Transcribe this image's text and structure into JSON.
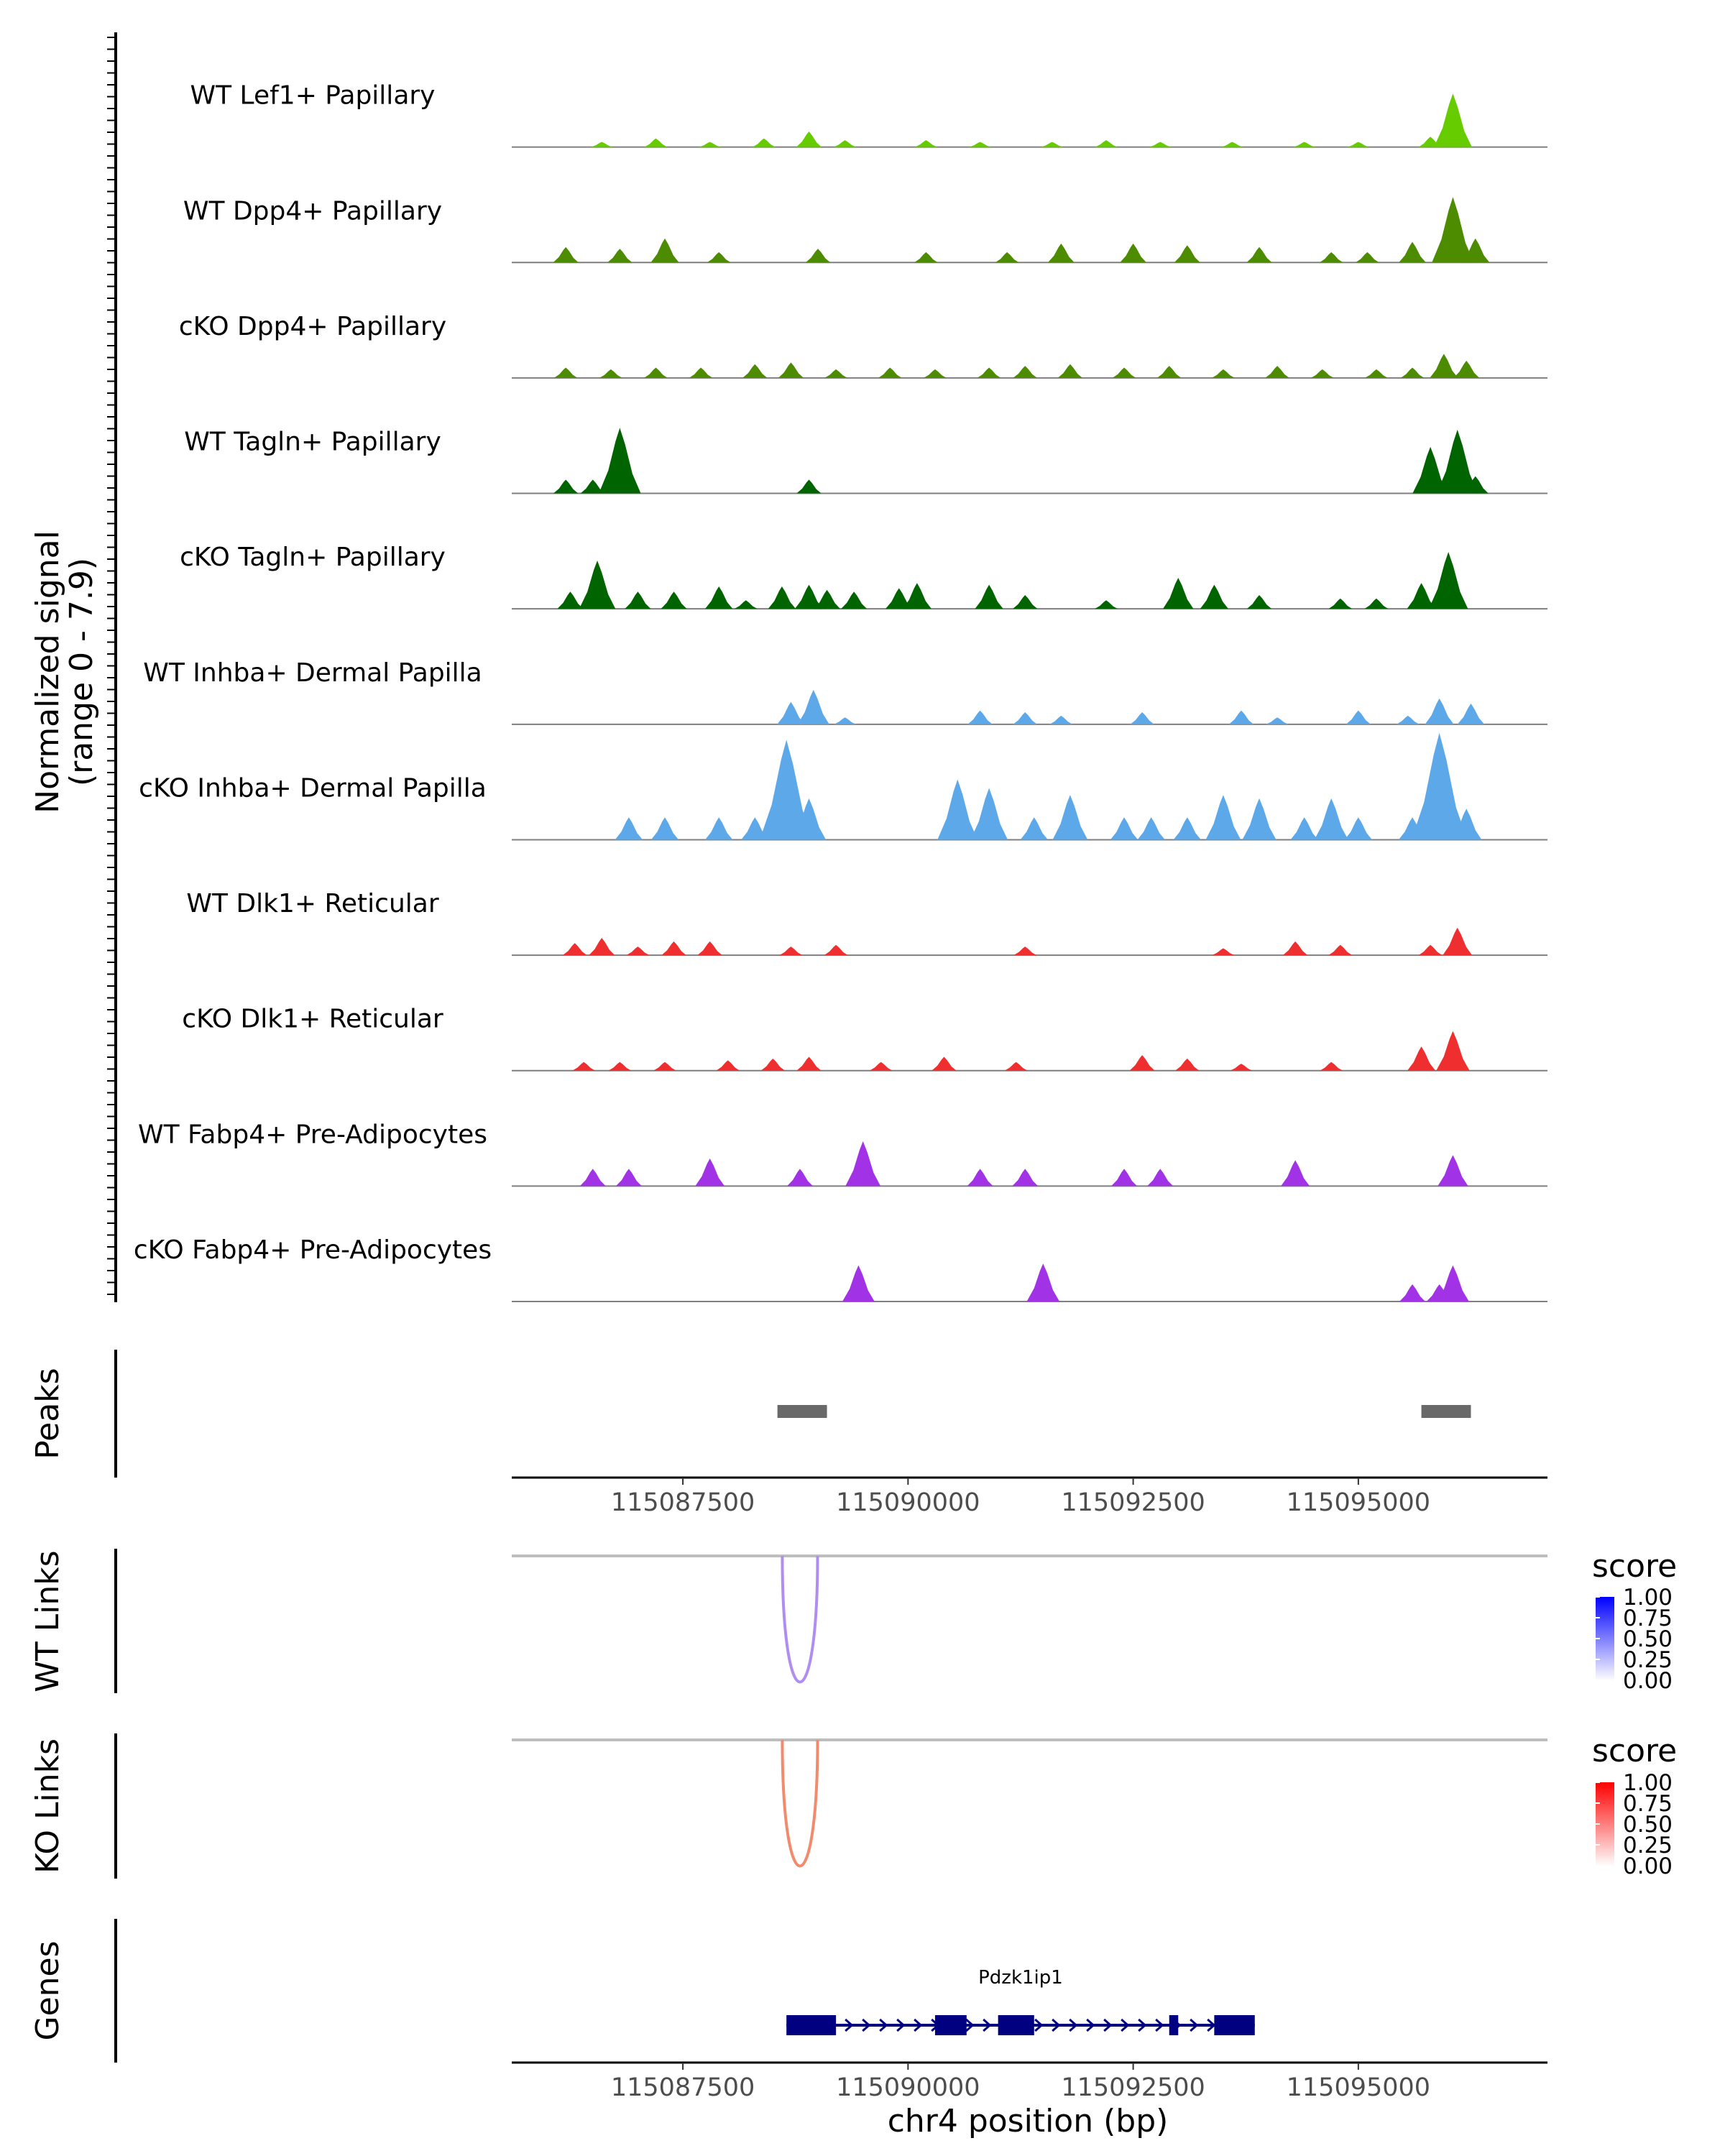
{
  "chart_data": {
    "type": "area",
    "title": "",
    "coverage": {
      "ylabel_line1": "Normalized signal",
      "ylabel_line2": "(range 0 - 7.9)",
      "ylim": [
        0,
        7.9
      ],
      "xlim": [
        115085600,
        115097100
      ],
      "tracks": [
        {
          "name": "WT Lef1+ Papillary",
          "color": "#66cc00",
          "peaks": [
            [
              115086600,
              0.3
            ],
            [
              115087200,
              0.5
            ],
            [
              115087800,
              0.3
            ],
            [
              115088400,
              0.5
            ],
            [
              115088900,
              0.9
            ],
            [
              115089300,
              0.4
            ],
            [
              115090200,
              0.4
            ],
            [
              115090800,
              0.3
            ],
            [
              115091600,
              0.3
            ],
            [
              115092200,
              0.4
            ],
            [
              115092800,
              0.3
            ],
            [
              115093600,
              0.3
            ],
            [
              115094400,
              0.3
            ],
            [
              115095000,
              0.3
            ],
            [
              115095800,
              0.6
            ],
            [
              115096050,
              3.1
            ]
          ]
        },
        {
          "name": "WT Dpp4+ Papillary",
          "color": "#4d8c00",
          "peaks": [
            [
              115086200,
              0.9
            ],
            [
              115086800,
              0.8
            ],
            [
              115087300,
              1.4
            ],
            [
              115087900,
              0.6
            ],
            [
              115089000,
              0.8
            ],
            [
              115090200,
              0.6
            ],
            [
              115091100,
              0.6
            ],
            [
              115091700,
              1.1
            ],
            [
              115092500,
              1.1
            ],
            [
              115093100,
              1.0
            ],
            [
              115093900,
              0.9
            ],
            [
              115094700,
              0.6
            ],
            [
              115095100,
              0.6
            ],
            [
              115095600,
              1.2
            ],
            [
              115096050,
              3.8
            ],
            [
              115096300,
              1.4
            ]
          ]
        },
        {
          "name": "cKO Dpp4+ Papillary",
          "color": "#4d8c00",
          "peaks": [
            [
              115086200,
              0.6
            ],
            [
              115086700,
              0.5
            ],
            [
              115087200,
              0.6
            ],
            [
              115087700,
              0.6
            ],
            [
              115088300,
              0.8
            ],
            [
              115088700,
              0.9
            ],
            [
              115089200,
              0.5
            ],
            [
              115089800,
              0.6
            ],
            [
              115090300,
              0.5
            ],
            [
              115090900,
              0.6
            ],
            [
              115091300,
              0.7
            ],
            [
              115091800,
              0.8
            ],
            [
              115092400,
              0.6
            ],
            [
              115092900,
              0.7
            ],
            [
              115093500,
              0.5
            ],
            [
              115094100,
              0.7
            ],
            [
              115094600,
              0.5
            ],
            [
              115095200,
              0.5
            ],
            [
              115095600,
              0.6
            ],
            [
              115095950,
              1.4
            ],
            [
              115096200,
              1.0
            ]
          ]
        },
        {
          "name": "WT Tagln+ Papillary",
          "color": "#006400",
          "peaks": [
            [
              115086200,
              0.8
            ],
            [
              115086500,
              0.8
            ],
            [
              115086800,
              3.8
            ],
            [
              115088900,
              0.8
            ],
            [
              115095800,
              2.7
            ],
            [
              115096100,
              3.7
            ],
            [
              115096300,
              1.0
            ]
          ]
        },
        {
          "name": "cKO Tagln+ Papillary",
          "color": "#006400",
          "peaks": [
            [
              115086250,
              1.0
            ],
            [
              115086550,
              2.8
            ],
            [
              115087000,
              1.0
            ],
            [
              115087400,
              1.0
            ],
            [
              115087900,
              1.3
            ],
            [
              115088200,
              0.5
            ],
            [
              115088600,
              1.3
            ],
            [
              115088900,
              1.4
            ],
            [
              115089100,
              1.1
            ],
            [
              115089400,
              1.0
            ],
            [
              115089900,
              1.2
            ],
            [
              115090100,
              1.5
            ],
            [
              115090900,
              1.4
            ],
            [
              115091300,
              0.8
            ],
            [
              115092200,
              0.5
            ],
            [
              115093000,
              1.8
            ],
            [
              115093400,
              1.4
            ],
            [
              115093900,
              0.8
            ],
            [
              115094800,
              0.6
            ],
            [
              115095200,
              0.6
            ],
            [
              115095700,
              1.5
            ],
            [
              115096000,
              3.3
            ]
          ]
        },
        {
          "name": "WT Inhba+ Dermal Papilla",
          "color": "#5da8e9",
          "peaks": [
            [
              115088700,
              1.3
            ],
            [
              115088950,
              2.0
            ],
            [
              115089300,
              0.4
            ],
            [
              115090800,
              0.8
            ],
            [
              115091300,
              0.7
            ],
            [
              115091700,
              0.5
            ],
            [
              115092600,
              0.7
            ],
            [
              115093700,
              0.8
            ],
            [
              115094100,
              0.4
            ],
            [
              115095000,
              0.8
            ],
            [
              115095550,
              0.5
            ],
            [
              115095900,
              1.5
            ],
            [
              115096250,
              1.2
            ]
          ]
        },
        {
          "name": "cKO Inhba+ Dermal Papilla",
          "color": "#5da8e9",
          "peaks": [
            [
              115086900,
              1.3
            ],
            [
              115087300,
              1.3
            ],
            [
              115087900,
              1.3
            ],
            [
              115088300,
              1.3
            ],
            [
              115088650,
              5.8
            ],
            [
              115088900,
              2.4
            ],
            [
              115090550,
              3.5
            ],
            [
              115090900,
              3.0
            ],
            [
              115091400,
              1.3
            ],
            [
              115091800,
              2.6
            ],
            [
              115092400,
              1.3
            ],
            [
              115092700,
              1.3
            ],
            [
              115093100,
              1.3
            ],
            [
              115093500,
              2.6
            ],
            [
              115093900,
              2.4
            ],
            [
              115094400,
              1.3
            ],
            [
              115094700,
              2.4
            ],
            [
              115095000,
              1.3
            ],
            [
              115095600,
              1.3
            ],
            [
              115095900,
              6.2
            ],
            [
              115096200,
              1.8
            ]
          ]
        },
        {
          "name": "WT Dlk1+ Reticular",
          "color": "#ef2f2f",
          "peaks": [
            [
              115086300,
              0.7
            ],
            [
              115086600,
              1.0
            ],
            [
              115087000,
              0.5
            ],
            [
              115087400,
              0.8
            ],
            [
              115087800,
              0.8
            ],
            [
              115088700,
              0.5
            ],
            [
              115089200,
              0.6
            ],
            [
              115091300,
              0.5
            ],
            [
              115093500,
              0.4
            ],
            [
              115094300,
              0.8
            ],
            [
              115094800,
              0.6
            ],
            [
              115095800,
              0.6
            ],
            [
              115096100,
              1.6
            ]
          ]
        },
        {
          "name": "cKO Dlk1+ Reticular",
          "color": "#ef2f2f",
          "peaks": [
            [
              115086400,
              0.5
            ],
            [
              115086800,
              0.5
            ],
            [
              115087300,
              0.5
            ],
            [
              115088000,
              0.6
            ],
            [
              115088500,
              0.7
            ],
            [
              115088900,
              0.8
            ],
            [
              115089700,
              0.5
            ],
            [
              115090400,
              0.8
            ],
            [
              115091200,
              0.5
            ],
            [
              115092600,
              0.9
            ],
            [
              115093100,
              0.7
            ],
            [
              115093700,
              0.4
            ],
            [
              115094700,
              0.5
            ],
            [
              115095700,
              1.4
            ],
            [
              115096050,
              2.3
            ]
          ]
        },
        {
          "name": "WT Fabp4+ Pre-Adipocytes",
          "color": "#a232e6",
          "peaks": [
            [
              115086500,
              1.0
            ],
            [
              115086900,
              1.0
            ],
            [
              115087800,
              1.6
            ],
            [
              115088800,
              1.0
            ],
            [
              115089500,
              2.6
            ],
            [
              115090800,
              1.0
            ],
            [
              115091300,
              1.0
            ],
            [
              115092400,
              1.0
            ],
            [
              115092800,
              1.0
            ],
            [
              115094300,
              1.5
            ],
            [
              115096050,
              1.8
            ]
          ]
        },
        {
          "name": "cKO Fabp4+ Pre-Adipocytes",
          "color": "#a232e6",
          "peaks": [
            [
              115089450,
              2.1
            ],
            [
              115091500,
              2.2
            ],
            [
              115095600,
              1.0
            ],
            [
              115095900,
              1.0
            ],
            [
              115096050,
              2.1
            ]
          ]
        }
      ]
    },
    "peaks": {
      "label": "Peaks",
      "color": "#696969",
      "regions": [
        [
          115088550,
          115089100
        ],
        [
          115095700,
          115096250
        ]
      ]
    },
    "x_axis": {
      "xlabel": "chr4 position (bp)",
      "ticks": [
        115087500,
        115090000,
        115092500,
        115095000
      ],
      "tick_labels": [
        "115087500",
        "115090000",
        "115092500",
        "115095000"
      ]
    },
    "links": [
      {
        "label": "WT Links",
        "legend_title": "score",
        "arc_color": "#b08df0",
        "gradient_low": "#ffffff",
        "gradient_high": "#0000ff",
        "arc": {
          "start": 115088700,
          "end": 115088900,
          "score": 0.35
        },
        "legend_ticks": [
          "1.00",
          "0.75",
          "0.50",
          "0.25",
          "0.00"
        ]
      },
      {
        "label": "KO Links",
        "legend_title": "score",
        "arc_color": "#f28a6e",
        "gradient_low": "#ffffff",
        "gradient_high": "#ff0000",
        "arc": {
          "start": 115088700,
          "end": 115088900,
          "score": 0.45
        },
        "legend_ticks": [
          "1.00",
          "0.75",
          "0.50",
          "0.25",
          "0.00"
        ]
      }
    ],
    "genes": {
      "label": "Genes",
      "gene_name": "Pdzk1ip1",
      "color": "#000080",
      "start": 115088650,
      "end": 115093850,
      "strand": "+",
      "exons": [
        [
          115088650,
          115089200
        ],
        [
          115090300,
          115090650
        ],
        [
          115091000,
          115091400
        ],
        [
          115092900,
          115093000
        ],
        [
          115093400,
          115093850
        ]
      ]
    }
  }
}
